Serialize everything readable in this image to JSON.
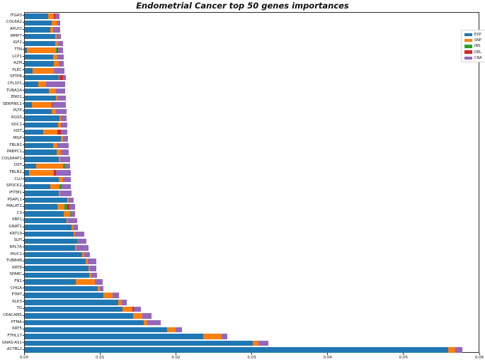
{
  "chart_data": {
    "type": "bar",
    "orientation": "horizontal",
    "stacked": true,
    "title": "Endometrial Cancer top 50 genes importances",
    "xlabel": "",
    "ylabel": "",
    "xlim": [
      0,
      0.06
    ],
    "xticks": [
      "0.00",
      "0.01",
      "0.02",
      "0.03",
      "0.04",
      "0.05",
      "0.06"
    ],
    "xtick_values": [
      0,
      0.01,
      0.02,
      0.03,
      0.04,
      0.05,
      0.06
    ],
    "grid": false,
    "legend_position": "upper-right",
    "series": [
      {
        "name": "EXP",
        "color": "#1f77b4"
      },
      {
        "name": "SNP",
        "color": "#ff7f0e"
      },
      {
        "name": "INS",
        "color": "#2ca02c"
      },
      {
        "name": "DEL",
        "color": "#d62728"
      },
      {
        "name": "CNA",
        "color": "#9467bd"
      }
    ],
    "categories": [
      "ITGA3",
      "COL6A2",
      "APLP2",
      "MMP7",
      "IGF2",
      "TTN",
      "LCP1",
      "A2M",
      "PLEC",
      "SFTPB",
      "CFL1P1",
      "TUBA1A",
      "ENO1",
      "SERPINC1",
      "PLTP",
      "RGS5",
      "SDC1",
      "XIST",
      "MGP",
      "FBLN1",
      "PABPC1",
      "COL6A4P1",
      "DST",
      "FBLN2",
      "CLU",
      "SPOCK2",
      "IFITM1",
      "PSAPL1",
      "MALAT1",
      "C3",
      "XBP1",
      "GNAT1",
      "KRT19",
      "SLPI",
      "RPL7A",
      "MUC1",
      "TUBB4B",
      "KRT8",
      "SPARC",
      "FN1",
      "CHGA",
      "FTMT",
      "KLK3",
      "TG",
      "CEACAM5",
      "PTMA",
      "KRT5",
      "FTHL17",
      "GNAS-AS1",
      "ACTBL2"
    ],
    "values": [
      [
        0.0031,
        0.0007,
        0.0,
        0.0002,
        0.0006
      ],
      [
        0.0035,
        0.0008,
        0.0,
        0.0,
        0.0004
      ],
      [
        0.0034,
        0.0003,
        0.0,
        0.0,
        0.001
      ],
      [
        0.004,
        0.0002,
        0.0,
        0.0,
        0.0006
      ],
      [
        0.004,
        0.0004,
        0.0,
        0.0,
        0.0006
      ],
      [
        0.0003,
        0.0038,
        0.0002,
        0.0001,
        0.0006
      ],
      [
        0.0037,
        0.0006,
        0.0,
        0.0,
        0.0008
      ],
      [
        0.0038,
        0.0007,
        0.0,
        0.0,
        0.0006
      ],
      [
        0.001,
        0.0028,
        0.0,
        0.0,
        0.0014
      ],
      [
        0.0045,
        0.0001,
        0.0,
        0.0004,
        0.0004
      ],
      [
        0.0018,
        0.001,
        0.0,
        0.0,
        0.0025
      ],
      [
        0.0032,
        0.0009,
        0.0,
        0.0,
        0.0012
      ],
      [
        0.0041,
        0.0002,
        0.0,
        0.0,
        0.0011
      ],
      [
        0.0009,
        0.0026,
        0.0,
        0.0001,
        0.0018
      ],
      [
        0.0035,
        0.0006,
        0.0,
        0.0,
        0.0014
      ],
      [
        0.0046,
        0.0002,
        0.0,
        0.0,
        0.0007
      ],
      [
        0.0044,
        0.0004,
        0.0,
        0.0,
        0.0008
      ],
      [
        0.0024,
        0.0019,
        0.0,
        0.0005,
        0.0008
      ],
      [
        0.0048,
        0.0002,
        0.0,
        0.0,
        0.0007
      ],
      [
        0.0037,
        0.0006,
        0.0,
        0.0,
        0.0015
      ],
      [
        0.0042,
        0.0006,
        0.0,
        0.0,
        0.001
      ],
      [
        0.0045,
        0.0002,
        0.0,
        0.0,
        0.0013
      ],
      [
        0.0015,
        0.0035,
        0.0003,
        0.0,
        0.0007
      ],
      [
        0.0006,
        0.0032,
        0.0,
        0.0003,
        0.002
      ],
      [
        0.0045,
        0.0005,
        0.0,
        0.0,
        0.0011
      ],
      [
        0.0034,
        0.0012,
        0.0003,
        0.0,
        0.0012
      ],
      [
        0.0045,
        0.0002,
        0.0,
        0.0,
        0.0015
      ],
      [
        0.0056,
        0.0002,
        0.0,
        0.0,
        0.0006
      ],
      [
        0.0043,
        0.0009,
        0.0004,
        0.0003,
        0.0007
      ],
      [
        0.0051,
        0.0009,
        0.0001,
        0.0,
        0.0005
      ],
      [
        0.0055,
        0.0002,
        0.0,
        0.0,
        0.0012
      ],
      [
        0.0062,
        0.0002,
        0.0,
        0.0,
        0.0006
      ],
      [
        0.0064,
        0.0002,
        0.0,
        0.0,
        0.0012
      ],
      [
        0.0068,
        0.0,
        0.0002,
        0.0,
        0.0011
      ],
      [
        0.0066,
        0.0002,
        0.0,
        0.0,
        0.0016
      ],
      [
        0.0076,
        0.0002,
        0.0,
        0.0,
        0.0008
      ],
      [
        0.008,
        0.0003,
        0.0,
        0.0,
        0.0011
      ],
      [
        0.0084,
        0.0002,
        0.0,
        0.0,
        0.0008
      ],
      [
        0.0085,
        0.0003,
        0.0,
        0.0,
        0.0007
      ],
      [
        0.0067,
        0.0025,
        0.0,
        0.0,
        0.0011
      ],
      [
        0.0096,
        0.0003,
        0.0,
        0.0,
        0.0005
      ],
      [
        0.0104,
        0.0012,
        0.0,
        0.0,
        0.0008
      ],
      [
        0.0123,
        0.0005,
        0.0,
        0.0,
        0.0006
      ],
      [
        0.0129,
        0.0013,
        0.0,
        0.0002,
        0.0009
      ],
      [
        0.0143,
        0.0012,
        0.0,
        0.0,
        0.0012
      ],
      [
        0.0157,
        0.0004,
        0.0,
        0.0,
        0.0018
      ],
      [
        0.0188,
        0.0011,
        0.0,
        0.0,
        0.0008
      ],
      [
        0.0235,
        0.0024,
        0.0,
        0.0,
        0.0008
      ],
      [
        0.03,
        0.0008,
        0.0,
        0.0,
        0.0013
      ],
      [
        0.0558,
        0.0009,
        0.0,
        0.0,
        0.001
      ]
    ]
  }
}
